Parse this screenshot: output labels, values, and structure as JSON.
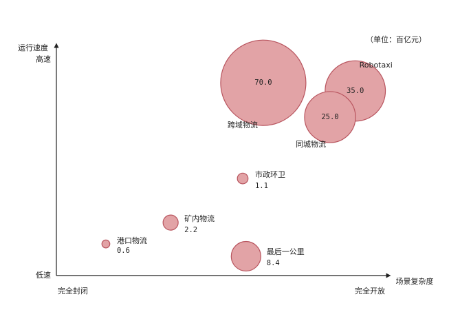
{
  "chart_data": {
    "type": "bubble",
    "size_unit": "（单位：百亿元）",
    "x_label": "场景复杂度",
    "y_label": "运行速度",
    "xlim": [
      0,
      10
    ],
    "ylim": [
      0,
      10
    ],
    "xticks": [
      {
        "value": 0,
        "label": "完全封闭"
      },
      {
        "value": 10,
        "label": "完全开放"
      }
    ],
    "yticks": [
      {
        "value": 0,
        "label": "低速"
      },
      {
        "value": 9.5,
        "label": "高速"
      }
    ],
    "categories": [
      "港口物流",
      "矿内物流",
      "市政环卫",
      "最后一公里",
      "跨域物流",
      "Robotaxi",
      "同城物流"
    ],
    "x": [
      1.49,
      3.44,
      5.61,
      5.71,
      6.23,
      9.0,
      8.24
    ],
    "y": [
      1.39,
      2.33,
      4.27,
      0.85,
      8.48,
      8.12,
      6.97
    ],
    "values": [
      0.6,
      2.2,
      1.1,
      8.4,
      70,
      35,
      25
    ],
    "value_labels": [
      "0.6",
      "2.2",
      "1.1",
      "8.4",
      "70.0",
      "35.0",
      "25.0"
    ],
    "color": "#e2a3a6",
    "edge_color": "#b8545e"
  }
}
